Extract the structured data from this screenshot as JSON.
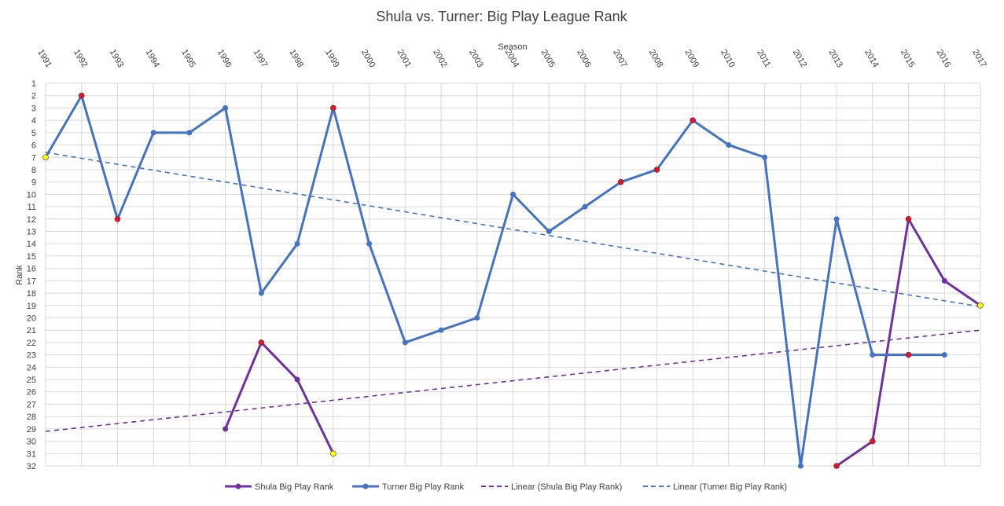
{
  "chart_data": {
    "type": "line",
    "title": "Shula vs. Turner: Big Play League Rank",
    "xlabel": "Season",
    "ylabel": "Rank",
    "x_axis_position": "top",
    "y_axis_reversed": true,
    "ylim": [
      1,
      32
    ],
    "grid": true,
    "legend_position": "bottom",
    "x": [
      "1991",
      "1992",
      "1993",
      "1994",
      "1995",
      "1996",
      "1997",
      "1998",
      "1999",
      "2000",
      "2001",
      "2002",
      "2003",
      "2004",
      "2005",
      "2006",
      "2007",
      "2008",
      "2009",
      "2010",
      "2011",
      "2012",
      "2013",
      "2014",
      "2015",
      "2016",
      "2017"
    ],
    "y_ticks": [
      1,
      2,
      3,
      4,
      5,
      6,
      7,
      8,
      9,
      10,
      11,
      12,
      13,
      14,
      15,
      16,
      17,
      18,
      19,
      20,
      21,
      22,
      23,
      24,
      25,
      26,
      27,
      28,
      29,
      30,
      31,
      32
    ],
    "y_tick_labels": [
      "1",
      "2",
      "3",
      "4",
      "5",
      "6",
      "7",
      "8",
      "9",
      "10",
      "11",
      "12",
      "13",
      "14",
      "15",
      "16",
      "17",
      "18",
      "19",
      "20",
      "21",
      "22",
      "23",
      "24",
      "25",
      "26",
      "27",
      "28",
      "29",
      "30",
      "31",
      "32"
    ],
    "series": [
      {
        "name": "Shula Big Play Rank",
        "color": "#7030a0",
        "values": [
          null,
          null,
          null,
          null,
          null,
          29,
          22,
          25,
          31,
          null,
          null,
          null,
          null,
          null,
          null,
          null,
          null,
          null,
          null,
          null,
          null,
          null,
          32,
          30,
          12,
          17,
          19
        ]
      },
      {
        "name": "Turner Big Play Rank",
        "color": "#4472c4",
        "values": [
          7,
          2,
          12,
          5,
          5,
          3,
          18,
          14,
          3,
          14,
          22,
          21,
          20,
          10,
          13,
          11,
          9,
          8,
          4,
          6,
          7,
          32,
          12,
          23,
          23,
          23,
          null
        ]
      }
    ],
    "trendlines": [
      {
        "name": "Linear (Shula Big Play Rank)",
        "color": "#7030a0",
        "start": 29.2,
        "end": 21.0
      },
      {
        "name": "Linear (Turner Big Play Rank)",
        "color": "#4472c4",
        "start": 6.6,
        "end": 19.1
      }
    ],
    "highlight_markers": [
      {
        "x": "1991",
        "y": 7,
        "color": "#ffff00"
      },
      {
        "x": "1992",
        "y": 2,
        "color": "#e8112d"
      },
      {
        "x": "1993",
        "y": 12,
        "color": "#e8112d"
      },
      {
        "x": "1997",
        "y": 22,
        "color": "#e8112d"
      },
      {
        "x": "1999",
        "y": 3,
        "color": "#e8112d"
      },
      {
        "x": "1999",
        "y": 31,
        "color": "#ffff00"
      },
      {
        "x": "2007",
        "y": 9,
        "color": "#e8112d"
      },
      {
        "x": "2008",
        "y": 8,
        "color": "#e8112d"
      },
      {
        "x": "2009",
        "y": 4,
        "color": "#e8112d"
      },
      {
        "x": "2013",
        "y": 32,
        "color": "#e8112d"
      },
      {
        "x": "2014",
        "y": 30,
        "color": "#e8112d"
      },
      {
        "x": "2015",
        "y": 23,
        "color": "#e8112d"
      },
      {
        "x": "2015",
        "y": 12,
        "color": "#e8112d"
      },
      {
        "x": "2017",
        "y": 19,
        "color": "#ffff00"
      }
    ],
    "legend": [
      {
        "label": "Shula Big Play Rank",
        "color": "#7030a0",
        "style": "line-marker"
      },
      {
        "label": "Turner Big Play Rank",
        "color": "#4472c4",
        "style": "line-marker"
      },
      {
        "label": "Linear (Shula Big Play Rank)",
        "color": "#7030a0",
        "style": "dashed"
      },
      {
        "label": "Linear (Turner Big Play Rank)",
        "color": "#4472c4",
        "style": "dashed"
      }
    ]
  }
}
